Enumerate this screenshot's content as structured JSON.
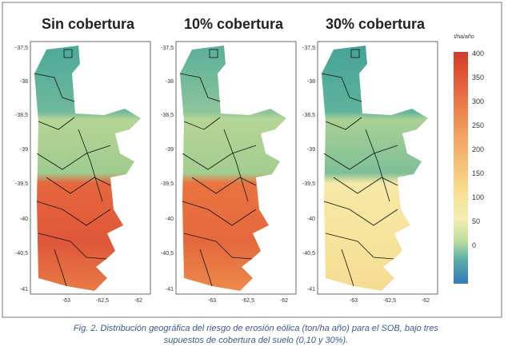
{
  "panels": [
    {
      "title": "Sin cobertura"
    },
    {
      "title": "10% cobertura"
    },
    {
      "title": "30% cobertura"
    }
  ],
  "lat_labels": [
    "-37,5",
    "-38",
    "-38,5",
    "-39",
    "-39,5",
    "-40",
    "-40,5",
    "-41"
  ],
  "lon_labels": [
    "-63",
    "-62,5",
    "-62"
  ],
  "colorbar": {
    "unit": "t/ha/año",
    "labels": [
      "400",
      "350",
      "300",
      "250",
      "200",
      "150",
      "100",
      "50",
      "0"
    ]
  },
  "caption": {
    "lines": [
      "Fig. 2. Distribución geográfica del riesgo de erosión eólica (ton/ha año) para el SOB, bajo tres",
      "supuestos de cobertura del suelo (0,10 y 30%)."
    ]
  }
}
